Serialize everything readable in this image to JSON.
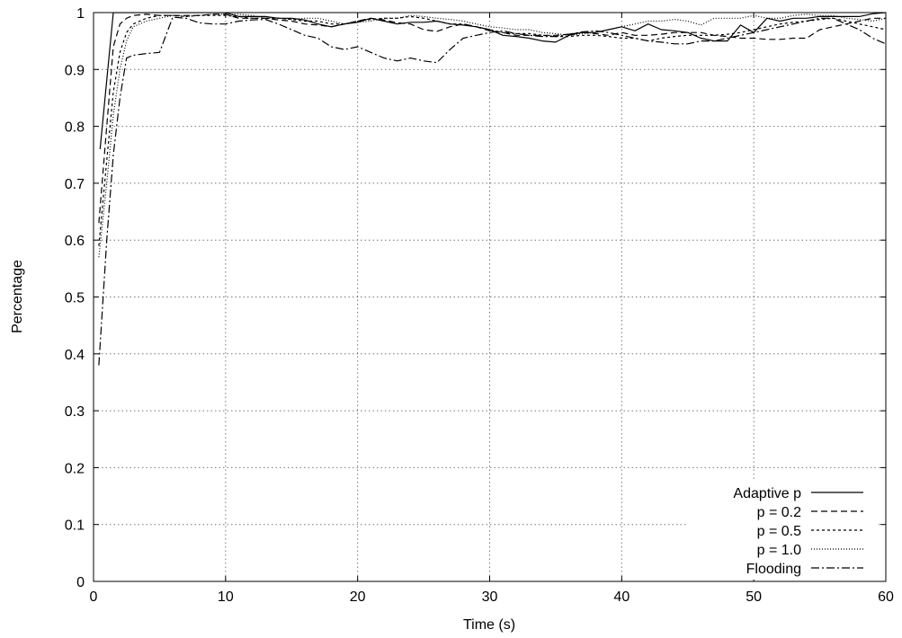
{
  "chart_data": {
    "type": "line",
    "title": "",
    "xlabel": "Time (s)",
    "ylabel": "Percentage",
    "xlim": [
      0,
      60
    ],
    "ylim": [
      0,
      1
    ],
    "grid": true,
    "legend_position": "bottom-right",
    "xticks": [
      "0",
      "10",
      "20",
      "30",
      "40",
      "50",
      "60"
    ],
    "yticks": [
      "0",
      "0.1",
      "0.2",
      "0.3",
      "0.4",
      "0.5",
      "0.6",
      "0.7",
      "0.8",
      "0.9",
      "1"
    ],
    "series": [
      {
        "name": "Adaptive p",
        "dash": "",
        "width": 1.2,
        "x": [
          0.5,
          1.5,
          2,
          3,
          4,
          5,
          6,
          7,
          8,
          9,
          10,
          11,
          12,
          13,
          14,
          15,
          16,
          17,
          18,
          19,
          20,
          21,
          22,
          23,
          24,
          25,
          26,
          27,
          28,
          29,
          30,
          31,
          32,
          33,
          34,
          35,
          36,
          37,
          38,
          39,
          40,
          41,
          42,
          43,
          44,
          45,
          46,
          47,
          48,
          49,
          50,
          51,
          52,
          53,
          54,
          55,
          56,
          57,
          58,
          59,
          60
        ],
        "y": [
          0.76,
          1.0,
          1.0,
          1.0,
          1.0,
          1.0,
          1.0,
          1.0,
          1.0,
          1.0,
          1.0,
          0.993,
          0.993,
          0.993,
          0.99,
          0.99,
          0.987,
          0.98,
          0.975,
          0.98,
          0.983,
          0.99,
          0.985,
          0.98,
          0.983,
          0.983,
          0.985,
          0.98,
          0.978,
          0.975,
          0.97,
          0.96,
          0.958,
          0.955,
          0.95,
          0.948,
          0.96,
          0.965,
          0.965,
          0.97,
          0.975,
          0.968,
          0.98,
          0.97,
          0.968,
          0.965,
          0.955,
          0.95,
          0.95,
          0.978,
          0.965,
          0.99,
          0.985,
          0.99,
          0.99,
          0.993,
          0.993,
          0.993,
          0.993,
          0.998,
          1.0
        ]
      },
      {
        "name": "p = 0.2",
        "dash": "7 4",
        "width": 1.2,
        "x": [
          0.4,
          1,
          1.5,
          2,
          2.5,
          3,
          4,
          5,
          6,
          7,
          8,
          9,
          10,
          11,
          12,
          13,
          14,
          15,
          16,
          17,
          18,
          19,
          20,
          21,
          22,
          23,
          24,
          25,
          26,
          27,
          28,
          29,
          30,
          31,
          32,
          33,
          34,
          35,
          36,
          37,
          38,
          39,
          40,
          41,
          42,
          43,
          44,
          45,
          46,
          47,
          48,
          49,
          50,
          51,
          52,
          53,
          54,
          55,
          56,
          57,
          58,
          59,
          60
        ],
        "y": [
          0.63,
          0.8,
          0.94,
          0.98,
          0.99,
          0.995,
          0.997,
          0.995,
          0.995,
          0.995,
          0.995,
          0.997,
          0.997,
          0.99,
          0.99,
          0.99,
          0.987,
          0.985,
          0.98,
          0.978,
          0.975,
          0.98,
          0.985,
          0.99,
          0.987,
          0.982,
          0.98,
          0.97,
          0.967,
          0.975,
          0.98,
          0.975,
          0.968,
          0.965,
          0.96,
          0.96,
          0.96,
          0.96,
          0.962,
          0.965,
          0.963,
          0.96,
          0.965,
          0.96,
          0.96,
          0.962,
          0.965,
          0.965,
          0.965,
          0.96,
          0.958,
          0.955,
          0.955,
          0.953,
          0.953,
          0.955,
          0.955,
          0.97,
          0.975,
          0.98,
          0.985,
          0.99,
          0.99
        ]
      },
      {
        "name": "p = 0.5",
        "dash": "3 3",
        "width": 1.2,
        "x": [
          0.4,
          1,
          1.5,
          2,
          2.5,
          3,
          4,
          5,
          6,
          7,
          8,
          9,
          10,
          11,
          12,
          13,
          14,
          15,
          16,
          17,
          18,
          19,
          20,
          21,
          22,
          23,
          24,
          25,
          26,
          27,
          28,
          29,
          30,
          31,
          32,
          33,
          34,
          35,
          36,
          37,
          38,
          39,
          40,
          41,
          42,
          43,
          44,
          45,
          46,
          47,
          48,
          49,
          50,
          51,
          52,
          53,
          54,
          55,
          56,
          57,
          58,
          59,
          60
        ],
        "y": [
          0.59,
          0.74,
          0.86,
          0.93,
          0.965,
          0.98,
          0.99,
          0.995,
          0.995,
          0.993,
          0.995,
          0.995,
          0.995,
          0.993,
          0.99,
          0.99,
          0.99,
          0.988,
          0.985,
          0.985,
          0.98,
          0.98,
          0.985,
          0.988,
          0.99,
          0.99,
          0.993,
          0.99,
          0.985,
          0.98,
          0.98,
          0.975,
          0.97,
          0.965,
          0.963,
          0.963,
          0.96,
          0.958,
          0.958,
          0.96,
          0.96,
          0.958,
          0.955,
          0.955,
          0.95,
          0.955,
          0.958,
          0.96,
          0.96,
          0.96,
          0.962,
          0.965,
          0.97,
          0.975,
          0.98,
          0.983,
          0.985,
          0.988,
          0.99,
          0.985,
          0.98,
          0.975,
          0.97
        ]
      },
      {
        "name": "p = 1.0",
        "dash": "1 2",
        "width": 1.2,
        "x": [
          0.4,
          1,
          1.5,
          2,
          2.5,
          3,
          4,
          5,
          6,
          7,
          8,
          9,
          10,
          11,
          12,
          13,
          14,
          15,
          16,
          17,
          18,
          19,
          20,
          21,
          22,
          23,
          24,
          25,
          26,
          27,
          28,
          29,
          30,
          31,
          32,
          33,
          34,
          35,
          36,
          37,
          38,
          39,
          40,
          41,
          42,
          43,
          44,
          45,
          46,
          47,
          48,
          49,
          50,
          51,
          52,
          53,
          54,
          55,
          56,
          57,
          58,
          59,
          60
        ],
        "y": [
          0.57,
          0.7,
          0.82,
          0.9,
          0.95,
          0.975,
          0.985,
          0.99,
          0.995,
          0.993,
          0.995,
          0.997,
          0.997,
          0.997,
          0.995,
          0.99,
          0.99,
          0.988,
          0.99,
          0.99,
          0.985,
          0.98,
          0.983,
          0.985,
          0.99,
          0.99,
          0.995,
          0.993,
          0.99,
          0.988,
          0.985,
          0.98,
          0.975,
          0.973,
          0.97,
          0.97,
          0.965,
          0.963,
          0.96,
          0.963,
          0.965,
          0.97,
          0.975,
          0.98,
          0.985,
          0.985,
          0.988,
          0.985,
          0.978,
          0.99,
          0.99,
          0.99,
          0.995,
          0.99,
          0.99,
          0.995,
          0.997,
          0.995,
          0.995,
          0.99,
          0.988,
          0.985,
          0.99
        ]
      },
      {
        "name": "Flooding",
        "dash": "9 3 2 3",
        "width": 1.2,
        "x": [
          0.4,
          1,
          1.5,
          2,
          2.5,
          3,
          4,
          5,
          6,
          7,
          8,
          9,
          10,
          11,
          12,
          13,
          14,
          15,
          16,
          17,
          18,
          19,
          20,
          21,
          22,
          23,
          24,
          25,
          26,
          27,
          28,
          29,
          30,
          31,
          32,
          33,
          34,
          35,
          36,
          37,
          38,
          39,
          40,
          41,
          42,
          43,
          44,
          45,
          46,
          47,
          48,
          49,
          50,
          51,
          52,
          53,
          54,
          55,
          56,
          57,
          58,
          59,
          60
        ],
        "y": [
          0.38,
          0.6,
          0.75,
          0.85,
          0.92,
          0.925,
          0.928,
          0.93,
          0.992,
          0.99,
          0.982,
          0.98,
          0.98,
          0.985,
          0.987,
          0.988,
          0.98,
          0.97,
          0.96,
          0.955,
          0.94,
          0.935,
          0.94,
          0.93,
          0.92,
          0.915,
          0.92,
          0.915,
          0.912,
          0.935,
          0.955,
          0.96,
          0.965,
          0.968,
          0.963,
          0.96,
          0.958,
          0.958,
          0.962,
          0.966,
          0.968,
          0.965,
          0.96,
          0.955,
          0.95,
          0.948,
          0.945,
          0.945,
          0.95,
          0.95,
          0.955,
          0.96,
          0.965,
          0.97,
          0.975,
          0.98,
          0.985,
          0.99,
          0.99,
          0.98,
          0.97,
          0.955,
          0.945
        ]
      }
    ]
  }
}
